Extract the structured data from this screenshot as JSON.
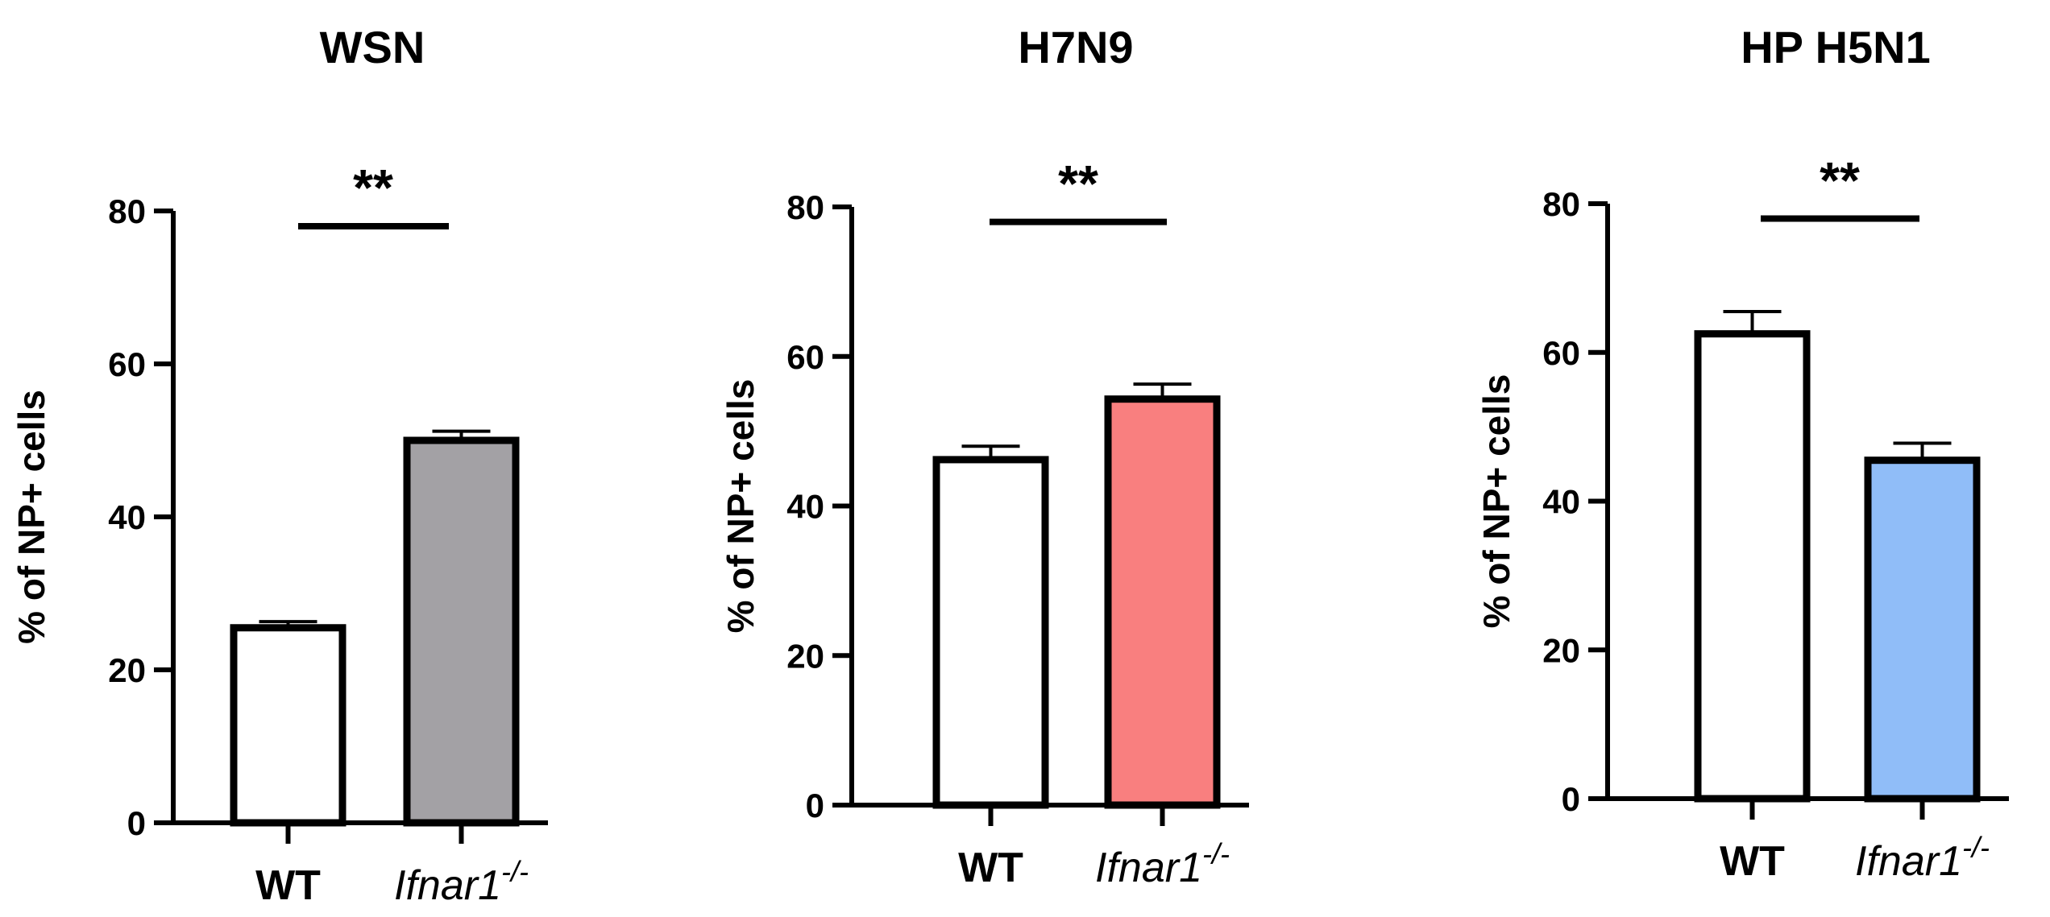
{
  "chart_data": [
    {
      "type": "bar",
      "title": "WSN",
      "ylabel": "% of NP+ cells",
      "ylim": [
        0,
        80
      ],
      "yticks": [
        0,
        20,
        40,
        60,
        80
      ],
      "categories": [
        {
          "main": "WT",
          "sup": "",
          "style": "bold"
        },
        {
          "main": "Ifnar1",
          "sup": "-/-",
          "style": "italic"
        }
      ],
      "values": [
        25.5,
        50.0
      ],
      "errors": [
        0.8,
        1.2
      ],
      "colors": [
        "#ffffff",
        "#a3a1a5"
      ],
      "significance": {
        "label": "**",
        "y": 78
      }
    },
    {
      "type": "bar",
      "title": "H7N9",
      "ylabel": "% of NP+ cells",
      "ylim": [
        0,
        80
      ],
      "yticks": [
        0,
        20,
        40,
        60,
        80
      ],
      "categories": [
        {
          "main": "WT",
          "sup": "",
          "style": "bold"
        },
        {
          "main": "Ifnar1",
          "sup": "-/-",
          "style": "italic"
        }
      ],
      "values": [
        46.2,
        54.3
      ],
      "errors": [
        1.8,
        2.0
      ],
      "colors": [
        "#ffffff",
        "#f97f7f"
      ],
      "significance": {
        "label": "**",
        "y": 78
      }
    },
    {
      "type": "bar",
      "title": "HP H5N1",
      "ylabel": "% of NP+ cells",
      "ylim": [
        0,
        80
      ],
      "yticks": [
        0,
        20,
        40,
        60,
        80
      ],
      "categories": [
        {
          "main": "WT",
          "sup": "",
          "style": "bold"
        },
        {
          "main": "Ifnar1",
          "sup": "-/-",
          "style": "italic"
        }
      ],
      "values": [
        62.5,
        45.5
      ],
      "errors": [
        3.0,
        2.3
      ],
      "colors": [
        "#ffffff",
        "#90bdf8"
      ],
      "significance": {
        "label": "**",
        "y": 78
      }
    }
  ]
}
